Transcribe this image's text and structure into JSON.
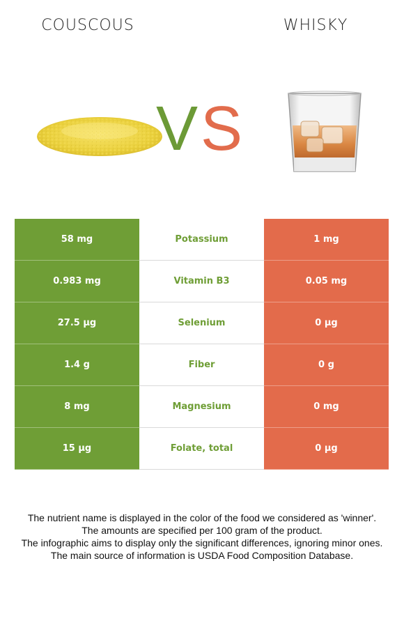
{
  "header": {
    "left_food": "COUSCOUS",
    "right_food": "WHISKY",
    "vs_v": "V",
    "vs_s": "S"
  },
  "colors": {
    "left_accent": "#6f9e36",
    "right_accent": "#e36b4b"
  },
  "rows": [
    {
      "left": "58 mg",
      "nutrient": "Potassium",
      "right": "1 mg"
    },
    {
      "left": "0.983 mg",
      "nutrient": "Vitamin B3",
      "right": "0.05 mg"
    },
    {
      "left": "27.5 µg",
      "nutrient": "Selenium",
      "right": "0 µg"
    },
    {
      "left": "1.4 g",
      "nutrient": "Fiber",
      "right": "0 g"
    },
    {
      "left": "8 mg",
      "nutrient": "Magnesium",
      "right": "0 mg"
    },
    {
      "left": "15 µg",
      "nutrient": "Folate, total",
      "right": "0 µg"
    }
  ],
  "footer": {
    "line1": "The nutrient name is displayed in the color of the food we considered as 'winner'.",
    "line2": "The amounts are specified per 100 gram of the product.",
    "line3": "The infographic aims to display only the significant differences, ignoring minor ones.",
    "line4": "The main source of information is USDA Food Composition Database."
  }
}
